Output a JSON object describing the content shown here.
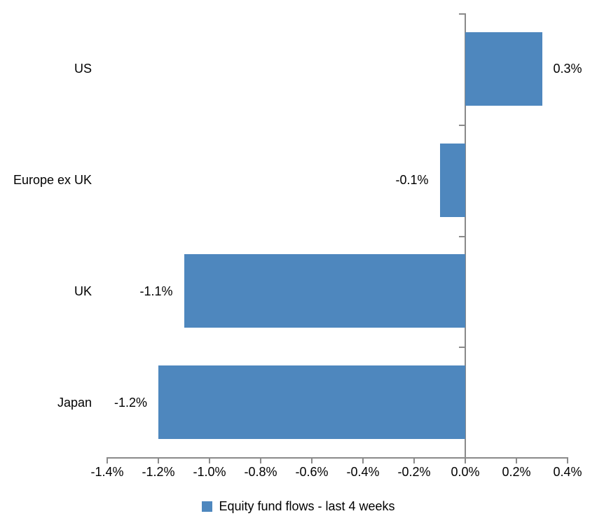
{
  "chart_data": {
    "type": "bar",
    "orientation": "horizontal",
    "title": "",
    "xlabel": "",
    "ylabel": "",
    "categories": [
      "US",
      "Europe ex UK",
      "UK",
      "Japan"
    ],
    "values": [
      0.3,
      -0.1,
      -1.1,
      -1.2
    ],
    "value_labels": [
      "0.3%",
      "-0.1%",
      "-1.1%",
      "-1.2%"
    ],
    "series_name": "Equity fund flows - last 4 weeks",
    "xlim": [
      -1.4,
      0.4
    ],
    "x_ticks": [
      -1.4,
      -1.2,
      -1.0,
      -0.8,
      -0.6,
      -0.4,
      -0.2,
      0.0,
      0.2,
      0.4
    ],
    "x_tick_labels": [
      "-1.4%",
      "-1.2%",
      "-1.0%",
      "-0.8%",
      "-0.6%",
      "-0.4%",
      "-0.2%",
      "0.0%",
      "0.2%",
      "0.4%"
    ],
    "grid": false,
    "legend_position": "bottom",
    "bar_color": "#4E87BE",
    "axis_color": "#8A8A8A",
    "text_color": "#000000",
    "background_color": "#FFFFFF"
  }
}
